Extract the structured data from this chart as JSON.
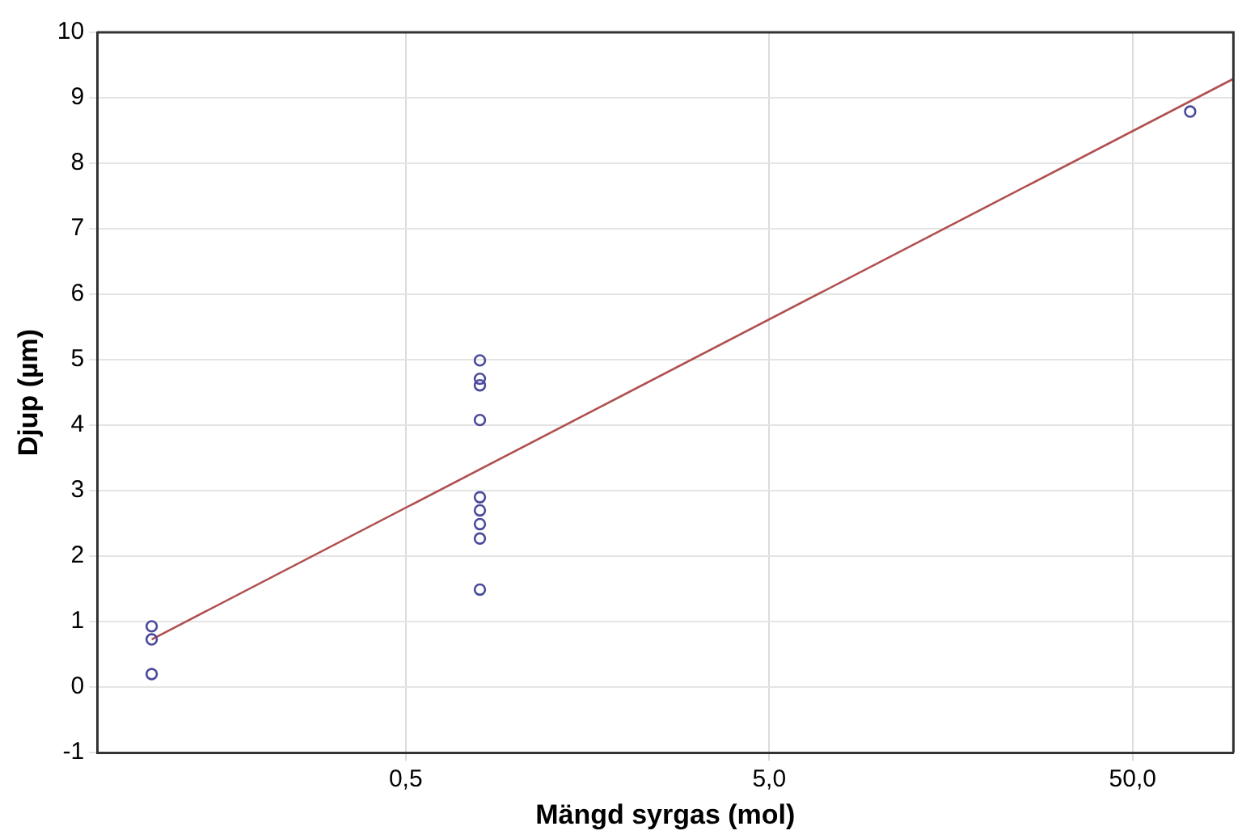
{
  "chart_data": {
    "type": "scatter",
    "xlabel": "Mängd syrgas (mol)",
    "ylabel": "Djup (µm)",
    "log": "x",
    "grid": true,
    "marker": "circle",
    "legend": false,
    "xlim": [
      0.0708,
      94.7
    ],
    "xticks": [
      {
        "value": 0.5,
        "label": "0,5"
      },
      {
        "value": 5,
        "label": "5,0"
      },
      {
        "value": 50,
        "label": "50,0"
      }
    ],
    "ylim": [
      -1,
      10
    ],
    "yticks": [
      -1,
      0,
      1,
      2,
      3,
      4,
      5,
      6,
      7,
      8,
      9,
      10
    ],
    "series": [
      {
        "color": "#4a4a9c",
        "x": [
          0.1,
          0.1,
          0.1,
          0.8,
          0.8,
          0.8,
          0.8,
          0.8,
          0.8,
          0.8,
          0.8,
          0.8,
          72
        ],
        "values": [
          0.93,
          0.73,
          0.2,
          4.99,
          4.71,
          4.61,
          4.08,
          2.9,
          2.7,
          2.49,
          2.27,
          1.49,
          8.79
        ]
      },
      {
        "type": "line",
        "color": "#b05050",
        "marker": "none",
        "x": [
          0.1,
          94.7
        ],
        "values": [
          0.73,
          9.29
        ]
      }
    ]
  }
}
